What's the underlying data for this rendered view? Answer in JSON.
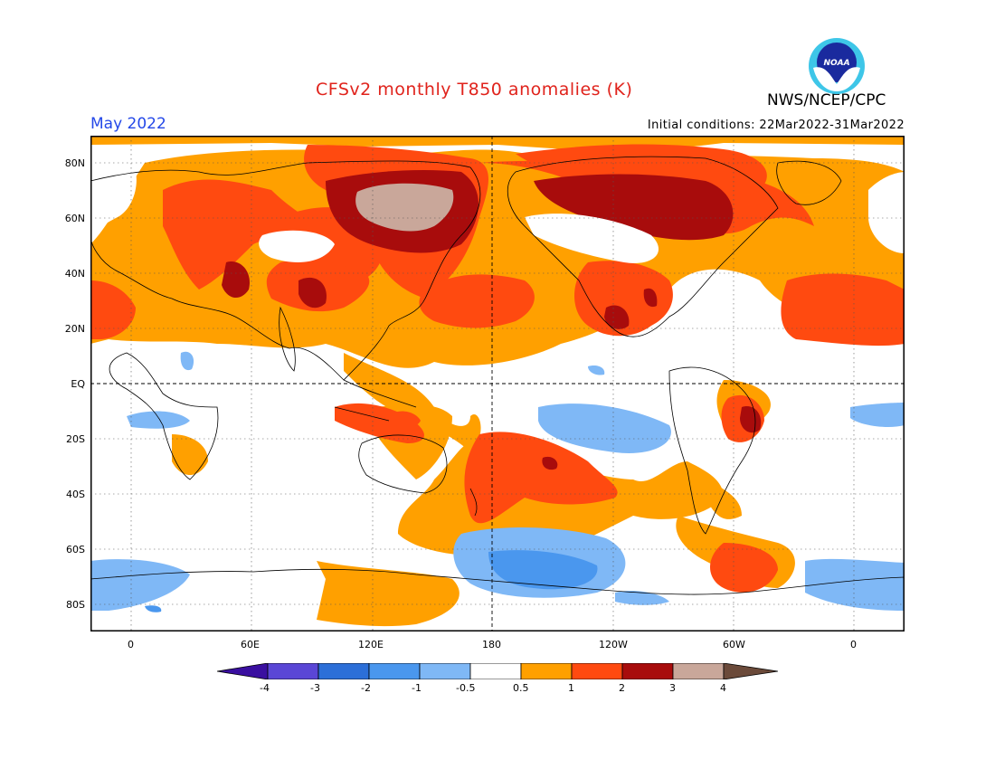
{
  "header": {
    "title": "CFSv2 monthly T850 anomalies (K)",
    "month": "May 2022",
    "initial_conditions": "Initial conditions: 22Mar2022-31Mar2022",
    "agency": "NWS/NCEP/CPC",
    "logo_text": "NOAA"
  },
  "axes": {
    "lat_labels": [
      "80N",
      "60N",
      "40N",
      "20N",
      "EQ",
      "20S",
      "40S",
      "60S",
      "80S"
    ],
    "lon_labels": [
      "0",
      "60E",
      "120E",
      "180",
      "120W",
      "60W",
      "0"
    ]
  },
  "colorbar": {
    "labels": [
      "-4",
      "-3",
      "-2",
      "-1",
      "-0.5",
      "0.5",
      "1",
      "2",
      "3",
      "4"
    ],
    "colors": [
      "#3a0fa0",
      "#5a46d6",
      "#2c6fd8",
      "#4a97ee",
      "#7fb8f6",
      "#ffffff",
      "#ffa000",
      "#ff4a10",
      "#a80c0c",
      "#c9a79a",
      "#6b4a3a"
    ]
  },
  "map": {
    "land_color": "#000000",
    "ocean_background": "#ffffff",
    "anomaly_colors": {
      "weak_warm": "#ffa000",
      "moderate_warm": "#ff4a10",
      "strong_warm": "#a80c0c",
      "extreme_warm": "#c9a79a",
      "weak_cool": "#7fb8f6",
      "moderate_cool": "#4a97ee"
    }
  }
}
